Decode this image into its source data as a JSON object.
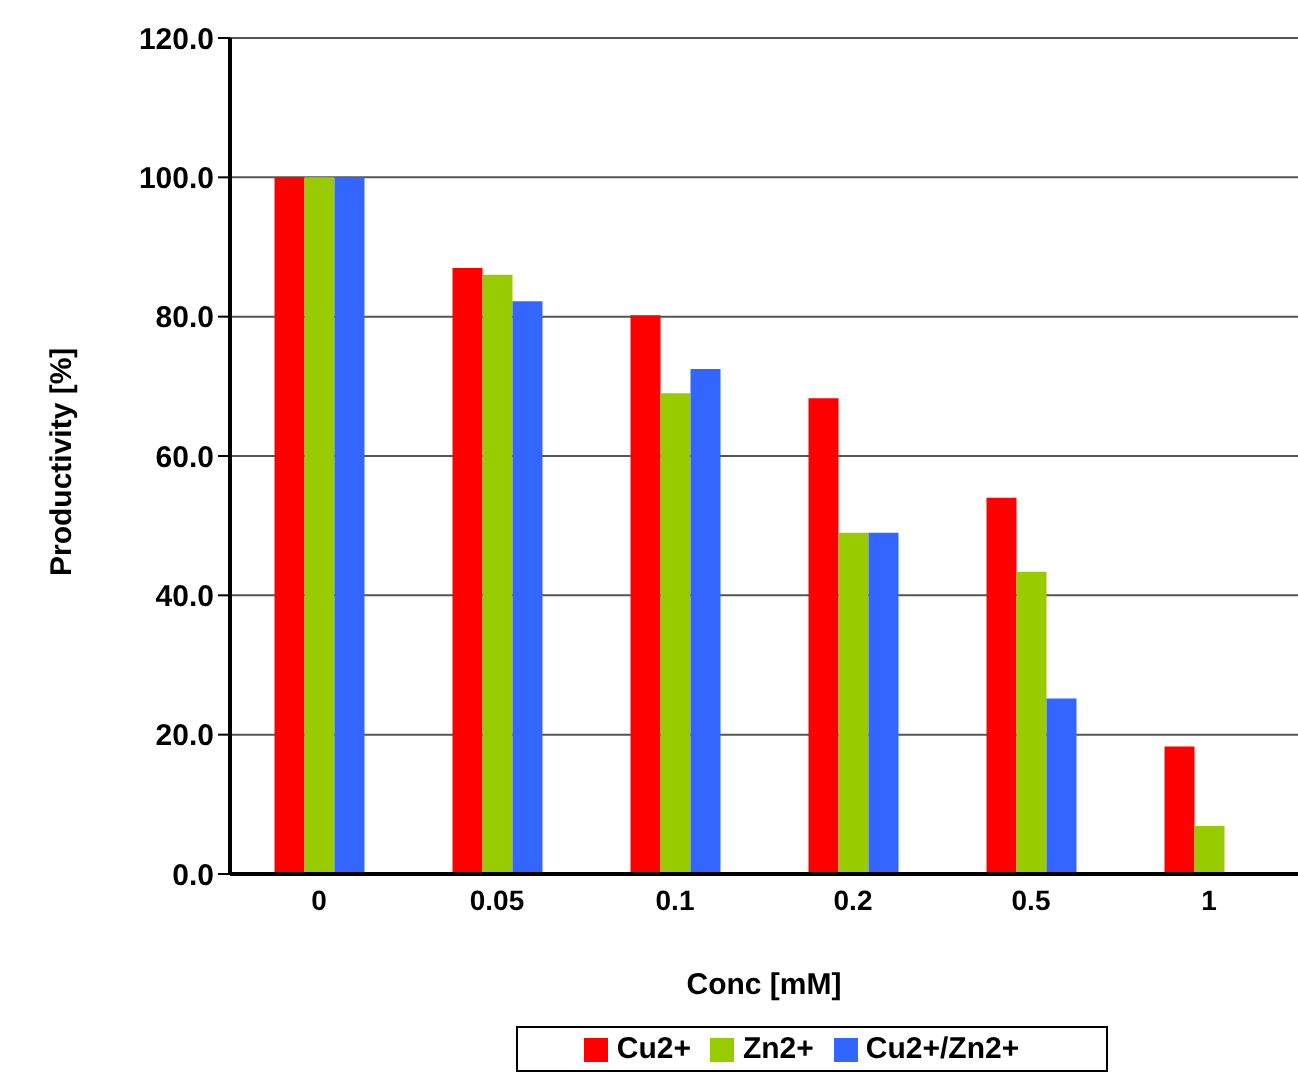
{
  "chart_data": {
    "type": "bar",
    "xlabel": "Conc [mM]",
    "ylabel": "Productivity [%]",
    "categories": [
      "0",
      "0.05",
      "0.1",
      "0.2",
      "0.5",
      "1"
    ],
    "series": [
      {
        "name": "Cu2+",
        "color": "#ff0000",
        "values": [
          100,
          87,
          80.2,
          68.3,
          54,
          18.3
        ]
      },
      {
        "name": "Zn2+",
        "color": "#99cc00",
        "values": [
          100,
          86,
          69,
          49,
          43.4,
          6.9
        ]
      },
      {
        "name": "Cu2+/Zn2+",
        "color": "#3366ff",
        "values": [
          100,
          82.2,
          72.5,
          49,
          25.2,
          null
        ]
      }
    ],
    "ylim": [
      0,
      120
    ],
    "yticks": [
      {
        "value": 0,
        "label": "0.0"
      },
      {
        "value": 20,
        "label": "20.0"
      },
      {
        "value": 40,
        "label": "40.0"
      },
      {
        "value": 60,
        "label": "60.0"
      },
      {
        "value": 80,
        "label": "80.0"
      },
      {
        "value": 100,
        "label": "100.0"
      },
      {
        "value": 120,
        "label": "120.0"
      }
    ],
    "grid": "y",
    "legend": "bottom"
  }
}
